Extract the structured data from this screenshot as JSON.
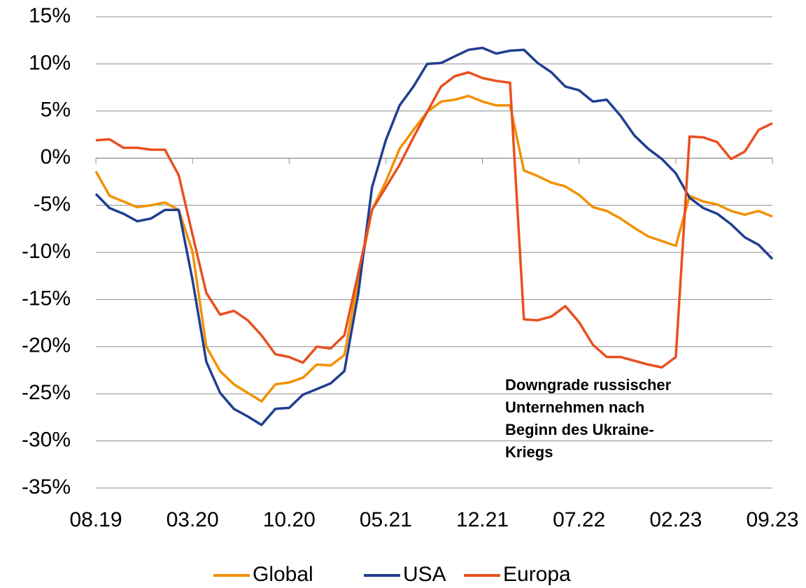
{
  "chart_data": {
    "type": "line",
    "categories": [
      "08.19",
      null,
      null,
      null,
      null,
      null,
      null,
      "03.20",
      null,
      null,
      null,
      null,
      null,
      null,
      "10.20",
      null,
      null,
      null,
      null,
      null,
      null,
      "05.21",
      null,
      null,
      null,
      null,
      null,
      null,
      "12.21",
      null,
      null,
      null,
      null,
      null,
      null,
      "07.22",
      null,
      null,
      null,
      null,
      null,
      null,
      "02.23",
      null,
      null,
      null,
      null,
      null,
      null,
      "09.23"
    ],
    "series": [
      {
        "name": "Global",
        "color": "#f29100",
        "values": [
          -1.4,
          -4.0,
          -4.6,
          -5.2,
          -5.0,
          -4.7,
          -5.5,
          -9.9,
          -20.0,
          -22.6,
          -24.0,
          -24.9,
          -25.8,
          -24.0,
          -23.8,
          -23.3,
          -21.9,
          -22.0,
          -20.9,
          -12.9,
          -5.5,
          -2.5,
          1.0,
          3.0,
          4.9,
          6.0,
          6.2,
          6.6,
          6.0,
          5.6,
          5.6,
          -1.3,
          -1.9,
          -2.6,
          -3.0,
          -3.9,
          -5.2,
          -5.6,
          -6.4,
          -7.4,
          -8.3,
          -8.8,
          -9.3,
          -4.0,
          -4.6,
          -4.9,
          -5.6,
          -6.0,
          -5.6,
          -6.2
        ]
      },
      {
        "name": "USA",
        "color": "#1f3f8f",
        "values": [
          -3.8,
          -5.3,
          -5.9,
          -6.7,
          -6.4,
          -5.5,
          -5.5,
          -12.9,
          -21.6,
          -24.9,
          -26.6,
          -27.4,
          -28.3,
          -26.6,
          -26.5,
          -25.1,
          -24.5,
          -23.9,
          -22.6,
          -14.4,
          -3.1,
          1.9,
          5.6,
          7.6,
          10.0,
          10.1,
          10.8,
          11.5,
          11.7,
          11.1,
          11.4,
          11.5,
          10.1,
          9.1,
          7.6,
          7.2,
          6.0,
          6.2,
          4.5,
          2.4,
          1.0,
          -0.1,
          -1.6,
          -4.2,
          -5.3,
          -5.9,
          -7.0,
          -8.4,
          -9.2,
          -10.7
        ]
      },
      {
        "name": "Europa",
        "color": "#e8501e",
        "values": [
          1.9,
          2.0,
          1.1,
          1.1,
          0.9,
          0.9,
          -1.8,
          -8.1,
          -14.3,
          -16.6,
          -16.2,
          -17.2,
          -18.8,
          -20.8,
          -21.1,
          -21.7,
          -20.0,
          -20.2,
          -18.8,
          -12.2,
          -5.5,
          -3.1,
          -0.7,
          2.2,
          4.9,
          7.6,
          8.7,
          9.1,
          8.5,
          8.2,
          8.0,
          -17.1,
          -17.2,
          -16.8,
          -15.7,
          -17.4,
          -19.8,
          -21.1,
          -21.1,
          -21.5,
          -21.9,
          -22.2,
          -21.1,
          2.3,
          2.2,
          1.7,
          -0.1,
          0.7,
          3.0,
          3.7
        ]
      }
    ],
    "ylim": [
      -35,
      15
    ],
    "yticks": [
      {
        "value": -35,
        "label": "-35%"
      },
      {
        "value": -30,
        "label": "-30%"
      },
      {
        "value": -25,
        "label": "-25%"
      },
      {
        "value": -20,
        "label": "-20%"
      },
      {
        "value": -15,
        "label": "-15%"
      },
      {
        "value": -10,
        "label": "-10%"
      },
      {
        "value": -5,
        "label": "-5%"
      },
      {
        "value": 0,
        "label": "0%"
      },
      {
        "value": 5,
        "label": "5%"
      },
      {
        "value": 10,
        "label": "10%"
      },
      {
        "value": 15,
        "label": "15%"
      }
    ],
    "grid": true,
    "legend": "bottom",
    "annotation": [
      "Downgrade russischer",
      "Unternehmen nach",
      "Beginn des Ukraine-",
      "Kriegs"
    ]
  }
}
